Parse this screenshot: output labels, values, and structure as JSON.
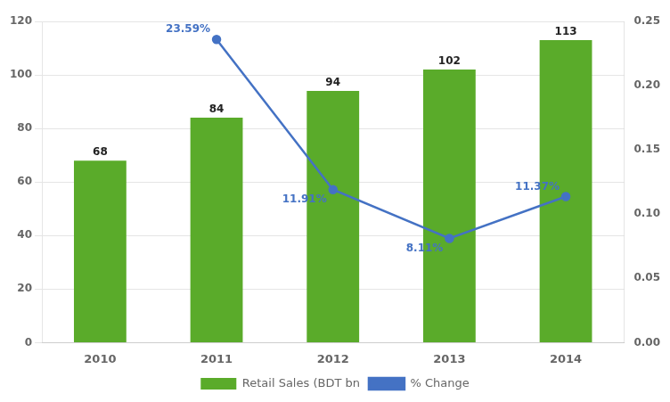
{
  "chart_data": {
    "type": "bar",
    "categories": [
      "2010",
      "2011",
      "2012",
      "2013",
      "2014"
    ],
    "series": [
      {
        "name": "Retail Sales (BDT bn",
        "type": "bar",
        "color": "#5aab2a",
        "values": [
          68,
          84,
          94,
          102,
          113
        ]
      },
      {
        "name": "% Change",
        "type": "line",
        "axis": "y2",
        "color": "#4472c4",
        "marker": "circle",
        "line_style": "solid",
        "values": [
          null,
          0.2359,
          0.1191,
          0.0811,
          0.1137
        ],
        "value_labels": [
          null,
          "23.59%",
          "11.91%",
          "8.11%",
          "11.37%"
        ]
      }
    ],
    "ylim": [
      0,
      120
    ],
    "yticks": [
      0,
      20,
      40,
      60,
      80,
      100,
      120
    ],
    "y2lim": [
      0,
      0.25
    ],
    "y2ticks": [
      {
        "value": 0,
        "label": "0.00"
      },
      0.05,
      {
        "value": 0.1,
        "label": "0.10"
      },
      0.15,
      {
        "value": 0.2,
        "label": "0.20"
      },
      0.25
    ],
    "grid": true,
    "legend": "bottom",
    "data_labels": true
  }
}
